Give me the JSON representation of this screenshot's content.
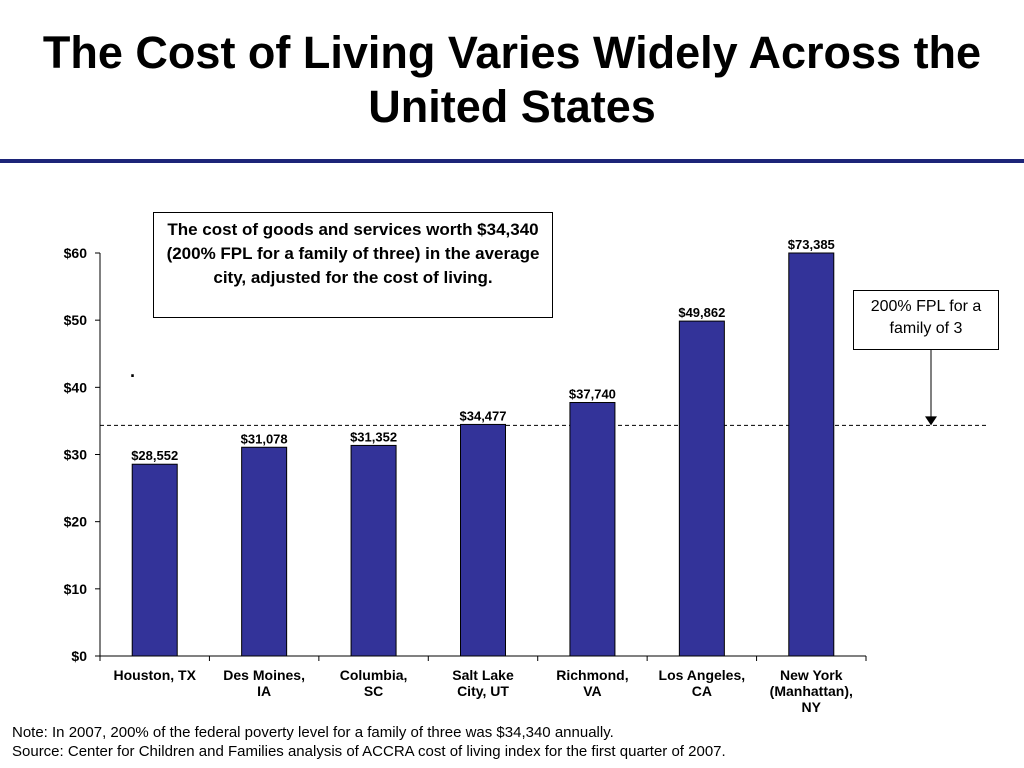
{
  "title": "The Cost of Living Varies Widely Across the United States",
  "callout": "The cost of goods and services worth $34,340 (200% FPL for a family of three) in the average city, adjusted for the cost of living.",
  "reference_label": "200% FPL for a family of 3",
  "stray_mark": "·",
  "footer": {
    "note": "Note: In 2007, 200% of the federal poverty level for a family of three was $34,340 annually.",
    "source": "Source: Center for Children and Families analysis of ACCRA cost of living index for the first quarter of 2007."
  },
  "colors": {
    "bar": "#333399",
    "title_rule": "#1c2478"
  },
  "chart_data": {
    "type": "bar",
    "categories": [
      [
        "Houston, TX"
      ],
      [
        "Des Moines,",
        "IA"
      ],
      [
        "Columbia,",
        "SC"
      ],
      [
        "Salt Lake",
        "City, UT"
      ],
      [
        "Richmond,",
        "VA"
      ],
      [
        "Los Angeles,",
        "CA"
      ],
      [
        "New York",
        "(Manhattan),",
        "NY"
      ]
    ],
    "values": [
      28552,
      31078,
      31352,
      34477,
      37740,
      49862,
      73385
    ],
    "data_labels": [
      "$28,552",
      "$31,078",
      "$31,352",
      "$34,477",
      "$37,740",
      "$49,862",
      "$73,385"
    ],
    "ylim": [
      0,
      60000
    ],
    "yticks": [
      {
        "value": 0,
        "label": "$0"
      },
      {
        "value": 10000,
        "label": "$10"
      },
      {
        "value": 20000,
        "label": "$20"
      },
      {
        "value": 30000,
        "label": "$30"
      },
      {
        "value": 40000,
        "label": "$40"
      },
      {
        "value": 50000,
        "label": "$50"
      },
      {
        "value": 60000,
        "label": "$60"
      }
    ],
    "reference_line": 34340,
    "grid": false,
    "clipped_at_ylim": true
  }
}
